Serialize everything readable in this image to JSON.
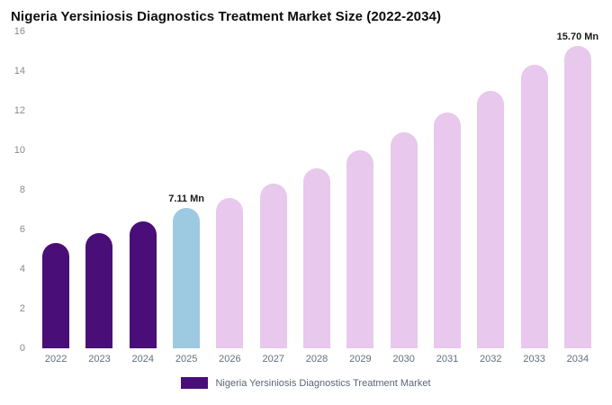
{
  "chart_data": {
    "type": "bar",
    "title": "Nigeria Yersiniosis Diagnostics Treatment Market Size (2022-2034)",
    "categories": [
      "2022",
      "2023",
      "2024",
      "2025",
      "2026",
      "2027",
      "2028",
      "2029",
      "2030",
      "2031",
      "2032",
      "2033",
      "2034"
    ],
    "values": [
      5.3,
      5.8,
      6.4,
      7.11,
      7.6,
      8.3,
      9.1,
      10.0,
      10.9,
      11.9,
      13.0,
      14.3,
      15.7
    ],
    "bar_colors": [
      "#4a0e78",
      "#4a0e78",
      "#4a0e78",
      "#9ecae1",
      "#e8c8ec",
      "#e8c8ec",
      "#e8c8ec",
      "#e8c8ec",
      "#e8c8ec",
      "#e8c8ec",
      "#e8c8ec",
      "#e8c8ec",
      "#e8c8ec"
    ],
    "annotations": [
      {
        "category": "2025",
        "text": "7.11 Mn"
      },
      {
        "category": "2034",
        "text": "15.70 Mn"
      }
    ],
    "xlabel": "",
    "ylabel": "",
    "ylim": [
      0,
      16
    ],
    "ytick_step": 2,
    "grid": false,
    "legend": {
      "position": "bottom",
      "items": [
        {
          "label": "Nigeria Yersiniosis Diagnostics Treatment Market",
          "color": "#4a0e78"
        }
      ]
    }
  }
}
